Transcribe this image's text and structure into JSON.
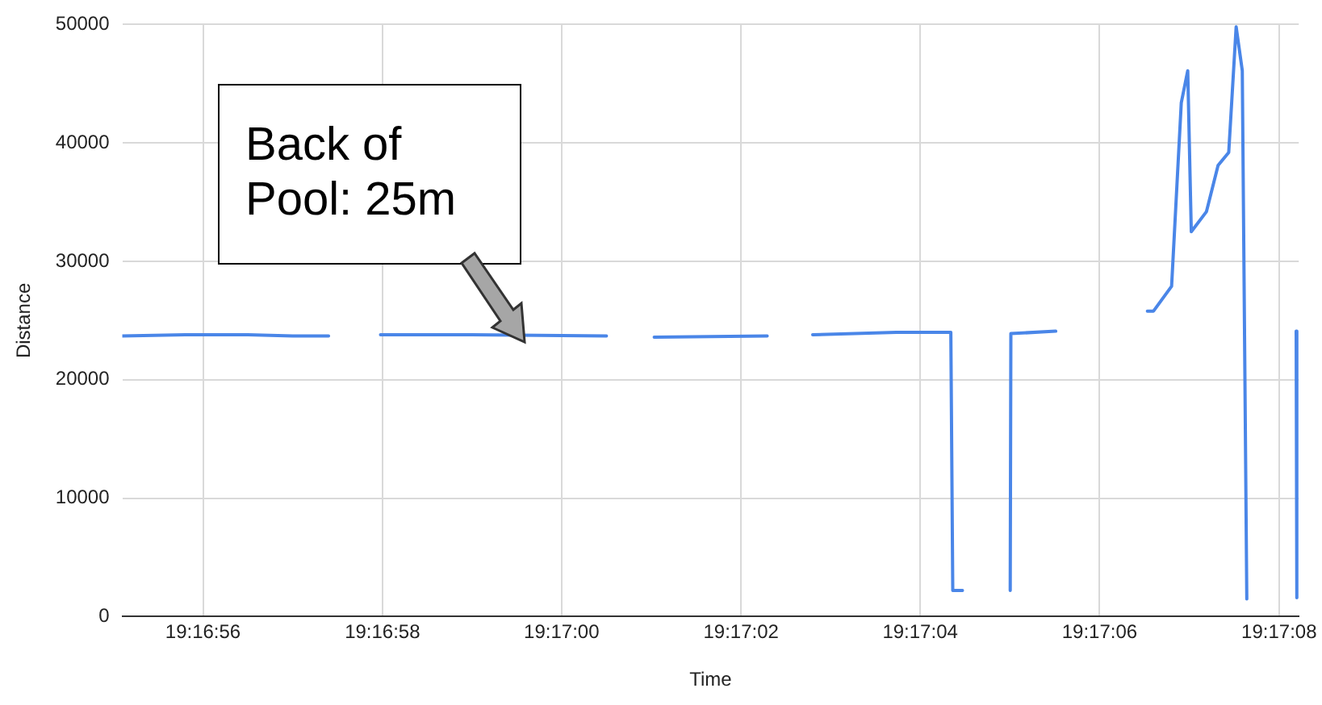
{
  "chart_data": {
    "type": "line",
    "xlabel": "Time",
    "ylabel": "Distance",
    "x": [
      19.281972,
      19.282167,
      19.282361,
      19.2825,
      19.282611,
      19.282694,
      19.282772,
      19.283056,
      19.283472,
      19.283556,
      19.28362,
      19.28397,
      19.284028,
      19.284111,
      19.28437,
      19.284539,
      19.284545,
      19.284575,
      19.284639,
      19.284723,
      19.284725,
      19.284864,
      19.285,
      19.285148,
      19.285167,
      19.285223,
      19.285253,
      19.285273,
      19.285284,
      19.285331,
      19.285367,
      19.2854,
      19.285423,
      19.285442,
      19.285456,
      19.285528,
      19.285609,
      19.285611
    ],
    "series": [
      {
        "color": "#4a86e8",
        "values": [
          23700,
          23800,
          23800,
          23700,
          23700,
          null,
          23800,
          23800,
          23700,
          null,
          23600,
          23700,
          null,
          23800,
          24000,
          24000,
          2200,
          2200,
          null,
          2200,
          23900,
          24100,
          null,
          25800,
          25800,
          27900,
          43400,
          46100,
          32500,
          34200,
          38100,
          39200,
          49800,
          46100,
          1500,
          null,
          24100,
          1600
        ]
      }
    ],
    "xlim": [
      19.281972,
      19.285617
    ],
    "xticks": [
      {
        "value": 19.282222,
        "label": "19:16:56"
      },
      {
        "value": 19.282778,
        "label": "19:16:58"
      },
      {
        "value": 19.283333,
        "label": "19:17:00"
      },
      {
        "value": 19.283889,
        "label": "19:17:02"
      },
      {
        "value": 19.284444,
        "label": "19:17:04"
      },
      {
        "value": 19.285,
        "label": "19:17:06"
      },
      {
        "value": 19.285556,
        "label": "19:17:08"
      }
    ],
    "ylim": [
      0,
      50000
    ],
    "yticks": [
      0,
      10000,
      20000,
      30000,
      40000,
      50000
    ],
    "grid": true,
    "legend": false,
    "marker": "none",
    "line_style": "solid",
    "annotations": [
      "Back of Pool: 25m"
    ]
  }
}
